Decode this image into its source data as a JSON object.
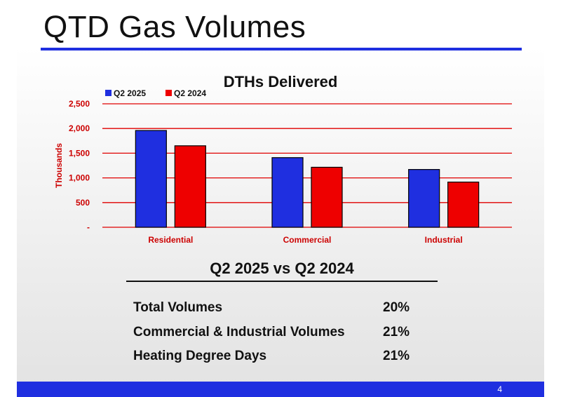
{
  "slide": {
    "title": "QTD Gas Volumes",
    "page_number": "4"
  },
  "colors": {
    "series1": "#1f2fe0",
    "series2": "#ee0000",
    "gridline": "#e00000",
    "axis_text": "#cc0000",
    "accent": "#1f2fe0"
  },
  "chart_data": {
    "type": "bar",
    "title": "DTHs Delivered",
    "ylabel": "Thousands",
    "xlabel": "",
    "categories": [
      "Residential",
      "Commercial",
      "Industrial"
    ],
    "series": [
      {
        "name": "Q2 2025",
        "values": [
          1960,
          1410,
          1170
        ]
      },
      {
        "name": "Q2 2024",
        "values": [
          1650,
          1215,
          915
        ]
      }
    ],
    "ylim": [
      0,
      2500
    ],
    "yticks": [
      0,
      500,
      1000,
      1500,
      2000,
      2500
    ],
    "ytick_labels": [
      "-",
      "500",
      "1,000",
      "1,500",
      "2,000",
      "2,500"
    ],
    "grid": true,
    "legend_position": "top-left"
  },
  "summary": {
    "title": "Q2 2025 vs Q2 2024",
    "rows": [
      {
        "label": "Total Volumes",
        "value": "20%"
      },
      {
        "label": "Commercial & Industrial Volumes",
        "value": "21%"
      },
      {
        "label": "Heating Degree Days",
        "value": "21%"
      }
    ]
  }
}
